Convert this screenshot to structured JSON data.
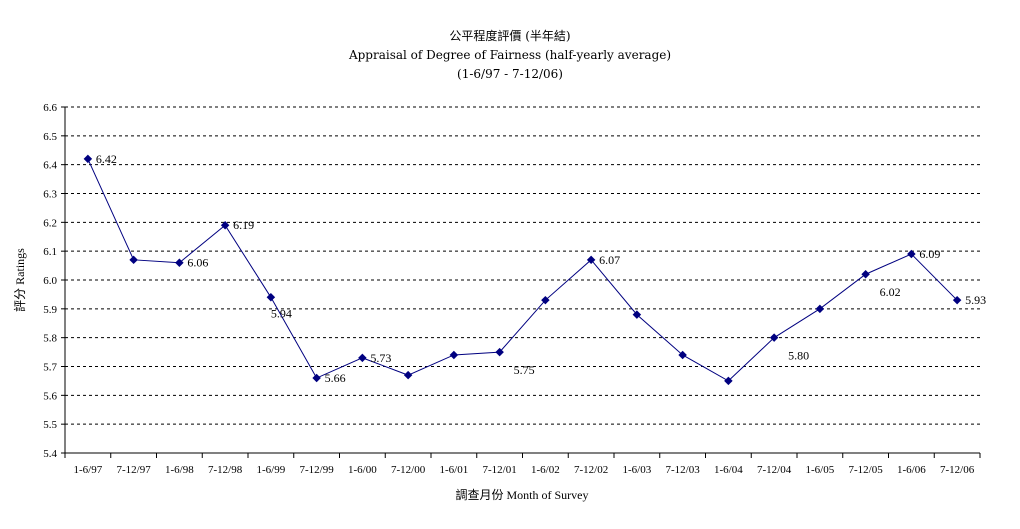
{
  "chart_data": {
    "type": "line",
    "title": "公平程度評價 (半年結)",
    "subtitle": "Appraisal of Degree of Fairness (half-yearly average)",
    "period": "(1-6/97 - 7-12/06)",
    "xlabel": "調查月份 Month of Survey",
    "ylabel": "評分 Ratings",
    "ylim": [
      5.4,
      6.6
    ],
    "ytick_step": 0.1,
    "ytick_labels": [
      "5.4",
      "5.5",
      "5.6",
      "5.7",
      "5.8",
      "5.9",
      "6.0",
      "6.1",
      "6.2",
      "6.3",
      "6.4",
      "6.5",
      "6.6"
    ],
    "grid": true,
    "legend": "none",
    "categories": [
      "1-6/97",
      "7-12/97",
      "1-6/98",
      "7-12/98",
      "1-6/99",
      "7-12/99",
      "1-6/00",
      "7-12/00",
      "1-6/01",
      "7-12/01",
      "1-6/02",
      "7-12/02",
      "1-6/03",
      "7-12/03",
      "1-6/04",
      "7-12/04",
      "1-6/05",
      "7-12/05",
      "1-6/06",
      "7-12/06"
    ],
    "series": [
      {
        "values": [
          6.42,
          6.07,
          6.06,
          6.19,
          5.94,
          5.66,
          5.73,
          5.67,
          5.74,
          5.75,
          5.93,
          6.07,
          5.88,
          5.74,
          5.65,
          5.8,
          5.9,
          6.02,
          6.09,
          5.93
        ],
        "data_labels": [
          "6.42",
          "",
          "6.06",
          "6.19",
          "5.94",
          "5.66",
          "5.73",
          "",
          "",
          "5.75",
          "",
          "6.07",
          "",
          "",
          "",
          "5.80",
          "",
          "6.02",
          "6.09",
          "5.93"
        ],
        "color": "#000080"
      }
    ]
  }
}
